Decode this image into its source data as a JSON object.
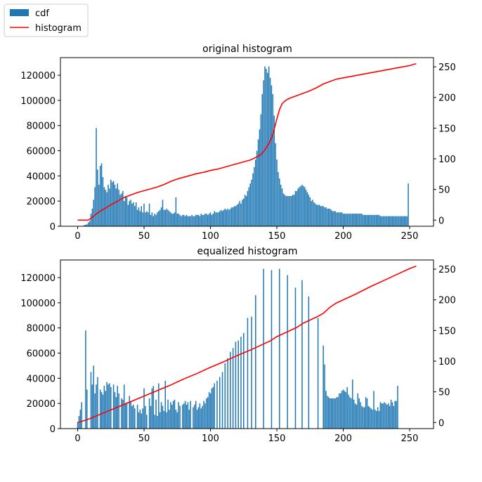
{
  "legend": {
    "entries": [
      {
        "label": "cdf",
        "kind": "patch",
        "color": "#1f77b4"
      },
      {
        "label": "histogram",
        "kind": "line",
        "color": "#ff0000"
      }
    ],
    "placement": "upper-left of figure"
  },
  "colors": {
    "bars": "#1f77b4",
    "line": "#ff0000"
  },
  "chart_data": [
    {
      "type": "bar",
      "title": "original histogram",
      "xlabel": "",
      "ylabel": "",
      "xlim": [
        -13,
        268
      ],
      "ylim": [
        0,
        134000
      ],
      "y2lim": [
        -10,
        265
      ],
      "xticks": [
        0,
        50,
        100,
        150,
        200,
        250
      ],
      "yticks": [
        0,
        20000,
        40000,
        60000,
        80000,
        100000,
        120000
      ],
      "y2ticks": [
        0,
        50,
        100,
        150,
        200,
        250
      ],
      "grid": false,
      "series": [
        {
          "name": "cdf",
          "type": "bar",
          "axis": "left",
          "x_start": 0,
          "values": [
            0,
            0,
            0,
            0,
            0,
            1000,
            1200,
            1500,
            3000,
            4000,
            10000,
            14000,
            21000,
            31000,
            78000,
            45000,
            33000,
            48000,
            50000,
            39000,
            31000,
            29000,
            27000,
            33000,
            30000,
            37000,
            35000,
            36000,
            33000,
            30000,
            34000,
            29000,
            25000,
            26000,
            28000,
            20000,
            24000,
            23000,
            17000,
            20000,
            21000,
            18000,
            19000,
            16000,
            19000,
            13000,
            15000,
            12000,
            16000,
            11000,
            18000,
            11000,
            12000,
            11000,
            18000,
            9000,
            11000,
            8000,
            10000,
            9000,
            11000,
            12000,
            13000,
            15000,
            21000,
            13000,
            13000,
            14000,
            13000,
            12000,
            11000,
            10000,
            10000,
            11000,
            23000,
            10000,
            10000,
            9000,
            8000,
            9000,
            9000,
            8000,
            9000,
            8000,
            8000,
            8000,
            9000,
            8000,
            8000,
            9000,
            9000,
            9000,
            8000,
            10000,
            9000,
            9000,
            10000,
            10000,
            9000,
            10000,
            11000,
            9000,
            10000,
            12000,
            11000,
            11000,
            11000,
            12000,
            13000,
            12000,
            13000,
            14000,
            13000,
            14000,
            13000,
            14000,
            15000,
            15000,
            16000,
            16000,
            17000,
            18000,
            20000,
            18000,
            21000,
            22000,
            25000,
            24000,
            28000,
            31000,
            34000,
            37000,
            42000,
            47000,
            53000,
            60000,
            69000,
            77000,
            89000,
            105000,
            116000,
            127000,
            125000,
            122000,
            127000,
            118000,
            112000,
            105000,
            88000,
            66000,
            53000,
            43000,
            38000,
            33000,
            30000,
            26000,
            25000,
            24000,
            24000,
            24000,
            24000,
            24000,
            25000,
            25000,
            28000,
            28000,
            30000,
            31000,
            32000,
            33000,
            32000,
            31000,
            29000,
            27000,
            25000,
            23000,
            20000,
            21000,
            19000,
            18000,
            17000,
            17000,
            17000,
            16000,
            16000,
            16000,
            15000,
            15000,
            14000,
            14000,
            14000,
            13000,
            12000,
            12000,
            12000,
            11000,
            11000,
            11000,
            11000,
            11000,
            10000,
            10000,
            10000,
            10000,
            10000,
            10000,
            10000,
            10000,
            10000,
            10000,
            10000,
            10000,
            10000,
            10000,
            10000,
            9000,
            9000,
            9000,
            9000,
            9000,
            9000,
            9000,
            9000,
            9000,
            9000,
            9000,
            9000,
            9000,
            8000,
            8000,
            8000,
            8000,
            8000,
            8000,
            8000,
            8000,
            8000,
            8000,
            8000,
            8000,
            8000,
            8000,
            8000,
            8000,
            8000,
            8000,
            8000,
            8000,
            8000,
            34000
          ]
        },
        {
          "name": "histogram",
          "type": "line",
          "axis": "right",
          "points": [
            [
              0,
              0
            ],
            [
              5,
              0
            ],
            [
              8,
              0
            ],
            [
              10,
              3
            ],
            [
              14,
              10
            ],
            [
              18,
              16
            ],
            [
              22,
              21
            ],
            [
              26,
              26
            ],
            [
              30,
              31
            ],
            [
              35,
              37
            ],
            [
              40,
              41
            ],
            [
              45,
              45
            ],
            [
              50,
              48
            ],
            [
              55,
              51
            ],
            [
              60,
              54
            ],
            [
              65,
              58
            ],
            [
              70,
              63
            ],
            [
              75,
              67
            ],
            [
              80,
              70
            ],
            [
              85,
              73
            ],
            [
              90,
              76
            ],
            [
              95,
              78
            ],
            [
              100,
              81
            ],
            [
              105,
              83
            ],
            [
              110,
              86
            ],
            [
              115,
              89
            ],
            [
              120,
              92
            ],
            [
              125,
              95
            ],
            [
              130,
              98
            ],
            [
              135,
              103
            ],
            [
              138,
              107
            ],
            [
              140,
              112
            ],
            [
              142,
              118
            ],
            [
              144,
              125
            ],
            [
              146,
              134
            ],
            [
              148,
              148
            ],
            [
              150,
              165
            ],
            [
              152,
              180
            ],
            [
              154,
              190
            ],
            [
              156,
              194
            ],
            [
              158,
              197
            ],
            [
              160,
              199
            ],
            [
              165,
              203
            ],
            [
              170,
              207
            ],
            [
              175,
              211
            ],
            [
              180,
              216
            ],
            [
              185,
              222
            ],
            [
              190,
              226
            ],
            [
              195,
              230
            ],
            [
              200,
              232
            ],
            [
              205,
              234
            ],
            [
              210,
              236
            ],
            [
              215,
              238
            ],
            [
              220,
              240
            ],
            [
              225,
              242
            ],
            [
              230,
              244
            ],
            [
              235,
              246
            ],
            [
              240,
              248
            ],
            [
              245,
              250
            ],
            [
              250,
              252
            ],
            [
              253,
              254
            ],
            [
              255,
              255
            ]
          ]
        }
      ]
    },
    {
      "type": "bar",
      "title": "equalized histogram",
      "xlabel": "",
      "ylabel": "",
      "xlim": [
        -13,
        268
      ],
      "ylim": [
        0,
        134000
      ],
      "y2lim": [
        -10,
        265
      ],
      "xticks": [
        0,
        50,
        100,
        150,
        200,
        250
      ],
      "yticks": [
        0,
        20000,
        40000,
        60000,
        80000,
        100000,
        120000
      ],
      "y2ticks": [
        0,
        50,
        100,
        150,
        200,
        250
      ],
      "grid": false,
      "series": [
        {
          "name": "cdf",
          "type": "bar",
          "axis": "left",
          "x_start": 0,
          "values": [
            5000,
            10000,
            15000,
            21000,
            0,
            0,
            78000,
            31000,
            0,
            0,
            45000,
            35000,
            50000,
            28000,
            35000,
            41000,
            0,
            31000,
            29000,
            27000,
            34000,
            30000,
            37000,
            35000,
            36000,
            33000,
            0,
            35000,
            29000,
            25000,
            34000,
            28000,
            0,
            24000,
            23000,
            35000,
            20000,
            21000,
            0,
            26000,
            22000,
            18000,
            19000,
            16000,
            0,
            19000,
            13000,
            15000,
            12000,
            16000,
            32000,
            18000,
            11000,
            0,
            24000,
            18000,
            32000,
            34000,
            11000,
            23000,
            10000,
            36000,
            13000,
            21000,
            18000,
            14000,
            38000,
            13000,
            23000,
            15000,
            21000,
            19000,
            22000,
            23000,
            15000,
            13000,
            21000,
            18000,
            0,
            19000,
            20000,
            22000,
            19000,
            21000,
            15000,
            22000,
            0,
            17000,
            19000,
            22000,
            15000,
            17000,
            20000,
            16000,
            18000,
            22000,
            20000,
            24000,
            25000,
            29000,
            28000,
            32000,
            33000,
            36000,
            0,
            38000,
            0,
            41000,
            0,
            45000,
            0,
            52000,
            0,
            56000,
            0,
            61000,
            0,
            64000,
            0,
            69000,
            0,
            70000,
            0,
            73000,
            0,
            76000,
            0,
            0,
            88000,
            0,
            0,
            89000,
            0,
            0,
            106000,
            0,
            0,
            0,
            0,
            0,
            127000,
            0,
            0,
            0,
            0,
            0,
            126000,
            0,
            0,
            0,
            0,
            0,
            127000,
            0,
            0,
            0,
            0,
            0,
            122000,
            0,
            0,
            0,
            0,
            0,
            112000,
            0,
            0,
            0,
            0,
            118000,
            0,
            0,
            0,
            0,
            105000,
            0,
            0,
            0,
            0,
            0,
            0,
            88000,
            0,
            0,
            0,
            66000,
            51000,
            30000,
            26000,
            25000,
            24000,
            24000,
            24000,
            24000,
            24000,
            25000,
            25000,
            28000,
            28000,
            30000,
            31000,
            30000,
            29000,
            33000,
            27000,
            25000,
            24000,
            39000,
            23000,
            20000,
            19000,
            28000,
            24000,
            21000,
            18000,
            17000,
            17000,
            25000,
            24000,
            18000,
            17000,
            16000,
            15000,
            30000,
            15000,
            14000,
            17000,
            14000,
            21000,
            20000,
            20000,
            21000,
            20000,
            19000,
            20000,
            18000,
            23000,
            21000,
            18000,
            22000,
            22000,
            34000
          ]
        },
        {
          "name": "histogram",
          "type": "line",
          "axis": "right",
          "points": [
            [
              0,
              0
            ],
            [
              5,
              3
            ],
            [
              10,
              7
            ],
            [
              20,
              16
            ],
            [
              30,
              25
            ],
            [
              40,
              34
            ],
            [
              50,
              43
            ],
            [
              60,
              52
            ],
            [
              70,
              61
            ],
            [
              80,
              71
            ],
            [
              90,
              80
            ],
            [
              100,
              90
            ],
            [
              110,
              99
            ],
            [
              120,
              109
            ],
            [
              130,
              118
            ],
            [
              140,
              128
            ],
            [
              145,
              133
            ],
            [
              150,
              140
            ],
            [
              155,
              145
            ],
            [
              160,
              150
            ],
            [
              165,
              155
            ],
            [
              170,
              162
            ],
            [
              175,
              167
            ],
            [
              180,
              172
            ],
            [
              185,
              178
            ],
            [
              190,
              188
            ],
            [
              195,
              195
            ],
            [
              200,
              200
            ],
            [
              210,
              210
            ],
            [
              220,
              221
            ],
            [
              230,
              231
            ],
            [
              240,
              241
            ],
            [
              250,
              251
            ],
            [
              255,
              255
            ]
          ]
        }
      ]
    }
  ]
}
